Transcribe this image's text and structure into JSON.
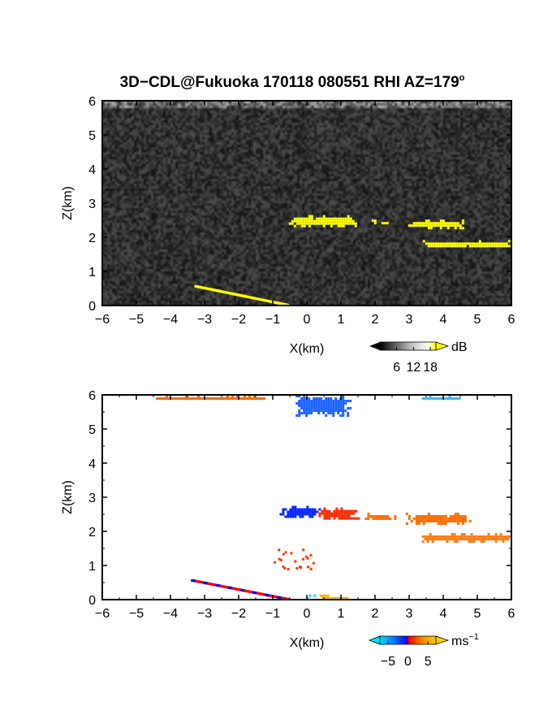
{
  "figure": {
    "title": "3D−CDL@Fukuoka 170118 080551 RHI AZ=179",
    "title_degree_mark": "o"
  },
  "chart_data": [
    {
      "type": "heatmap",
      "panel": "signal-intensity",
      "xlabel": "X(km)",
      "ylabel": "Z(km)",
      "xlim": [
        -6,
        6
      ],
      "ylim": [
        0,
        6
      ],
      "x_ticks": [
        "−6",
        "−5",
        "−4",
        "−3",
        "−2",
        "−1",
        "0",
        "1",
        "2",
        "3",
        "4",
        "5",
        "6"
      ],
      "y_ticks": [
        "0",
        "1",
        "2",
        "3",
        "4",
        "5",
        "6"
      ],
      "background": "grayscale noise",
      "colorbar": {
        "unit": "dB",
        "ticks": [
          "6",
          "12",
          "18"
        ],
        "tick_values": [
          6,
          12,
          18
        ],
        "range": [
          0,
          20
        ],
        "colors": [
          "#000000",
          "#ffffff",
          "#ffff00"
        ]
      },
      "features": [
        {
          "kind": "band",
          "x": [
            -0.6,
            1.5
          ],
          "z": [
            2.35,
            2.65
          ],
          "color": "#ffff00"
        },
        {
          "kind": "band",
          "x": [
            1.9,
            2.5
          ],
          "z": [
            2.38,
            2.52
          ],
          "color": "#ffff00"
        },
        {
          "kind": "band",
          "x": [
            2.9,
            4.6
          ],
          "z": [
            2.3,
            2.52
          ],
          "color": "#ffff00"
        },
        {
          "kind": "band",
          "x": [
            3.4,
            6.0
          ],
          "z": [
            1.72,
            1.92
          ],
          "color": "#ffff00"
        },
        {
          "kind": "slant",
          "x": [
            -3.3,
            -0.6
          ],
          "z": [
            0.55,
            0.0
          ],
          "color": "#ffff00"
        }
      ]
    },
    {
      "type": "heatmap",
      "panel": "doppler-velocity",
      "xlabel": "X(km)",
      "ylabel": "Z(km)",
      "xlim": [
        -6,
        6
      ],
      "ylim": [
        0,
        6
      ],
      "x_ticks": [
        "−6",
        "−5",
        "−4",
        "−3",
        "−2",
        "−1",
        "0",
        "1",
        "2",
        "3",
        "4",
        "5",
        "6"
      ],
      "y_ticks": [
        "0",
        "1",
        "2",
        "3",
        "4",
        "5",
        "6"
      ],
      "background": "white",
      "colorbar": {
        "unit": "ms",
        "unit_superscript": "−1",
        "ticks": [
          "−5",
          "0",
          "5"
        ],
        "tick_values": [
          -5,
          0,
          5
        ],
        "range": [
          -7,
          7
        ],
        "colors": [
          "#00e0ff",
          "#0077ff",
          "#0000ff",
          "#ff0000",
          "#ff8800",
          "#ffcc00"
        ]
      },
      "features": [
        {
          "kind": "band",
          "x": [
            -4.5,
            -1.0
          ],
          "z": [
            5.9,
            6.0
          ],
          "color": "#ff6a00"
        },
        {
          "kind": "band",
          "x": [
            -0.4,
            1.3
          ],
          "z": [
            5.4,
            6.0
          ],
          "color": "#1e64ff"
        },
        {
          "kind": "band",
          "x": [
            3.3,
            4.6
          ],
          "z": [
            5.9,
            6.0
          ],
          "color": "#33b7ff"
        },
        {
          "kind": "band",
          "x": [
            -0.8,
            0.4
          ],
          "z": [
            2.4,
            2.75
          ],
          "color": "#0a28ff"
        },
        {
          "kind": "band",
          "x": [
            0.2,
            1.5
          ],
          "z": [
            2.35,
            2.7
          ],
          "color": "#ff2a00"
        },
        {
          "kind": "band",
          "x": [
            1.7,
            2.6
          ],
          "z": [
            2.35,
            2.55
          ],
          "color": "#ff6a00"
        },
        {
          "kind": "band",
          "x": [
            2.9,
            4.8
          ],
          "z": [
            2.25,
            2.55
          ],
          "color": "#ff6a00"
        },
        {
          "kind": "band",
          "x": [
            3.3,
            6.0
          ],
          "z": [
            1.72,
            1.95
          ],
          "color": "#ff7a10"
        },
        {
          "kind": "scatter",
          "x": [
            -1.0,
            0.2
          ],
          "z": [
            0.9,
            1.5
          ],
          "color": "#ff3a00"
        },
        {
          "kind": "slant",
          "x": [
            -3.4,
            -0.6
          ],
          "z": [
            0.55,
            0.0
          ],
          "color": "#ff0000"
        },
        {
          "kind": "band",
          "x": [
            0.3,
            1.2
          ],
          "z": [
            0.0,
            0.15
          ],
          "color": "#ffb000"
        },
        {
          "kind": "band",
          "x": [
            -0.3,
            0.2
          ],
          "z": [
            0.0,
            0.15
          ],
          "color": "#00d8ff"
        }
      ]
    }
  ]
}
